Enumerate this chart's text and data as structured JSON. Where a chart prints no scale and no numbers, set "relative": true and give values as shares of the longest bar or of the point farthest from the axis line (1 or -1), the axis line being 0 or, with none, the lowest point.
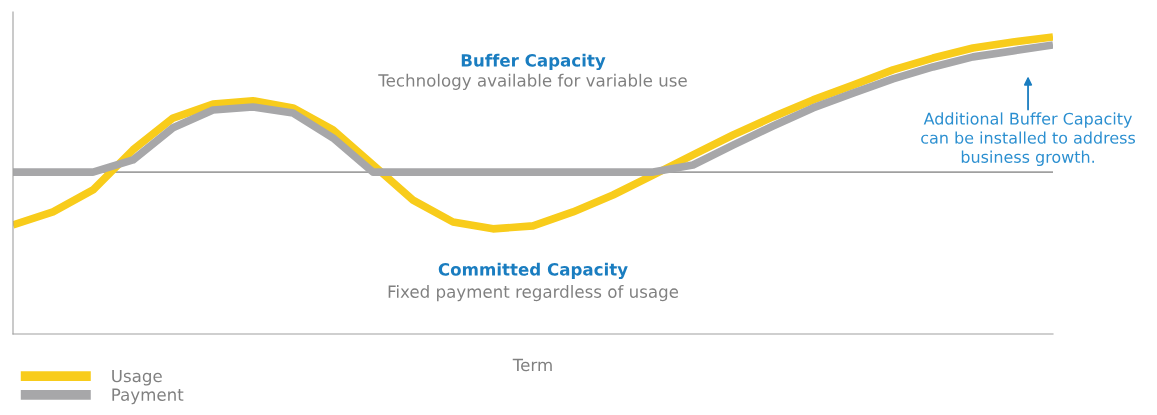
{
  "chart_data": {
    "type": "line",
    "relative": true,
    "xlabel": "Term",
    "categories": [
      null,
      null,
      null,
      null,
      null,
      null,
      null,
      null,
      null,
      null,
      null,
      null,
      null,
      null,
      null,
      null,
      null,
      null,
      null,
      null,
      null,
      null,
      null,
      null,
      null,
      null,
      null
    ],
    "series": [
      {
        "name": "Usage",
        "color": "#f8cc1b",
        "values": [
          0.367,
          0.411,
          0.485,
          0.62,
          0.727,
          0.774,
          0.785,
          0.761,
          0.687,
          0.569,
          0.451,
          0.377,
          0.354,
          0.364,
          0.411,
          0.468,
          0.535,
          0.603,
          0.67,
          0.731,
          0.788,
          0.838,
          0.889,
          0.929,
          0.963,
          0.983,
          1
        ]
      },
      {
        "name": "Payment",
        "color": "#a7a7a9",
        "values": [
          0.545,
          0.545,
          0.545,
          0.586,
          0.694,
          0.754,
          0.764,
          0.744,
          0.66,
          0.545,
          0.545,
          0.545,
          0.545,
          0.545,
          0.545,
          0.545,
          0.545,
          0.569,
          0.636,
          0.7,
          0.761,
          0.811,
          0.859,
          0.899,
          0.933,
          0.953,
          0.973
        ]
      }
    ],
    "ref_lines": [
      {
        "axis": "y",
        "value": 0.545,
        "color": "#a0a0a0"
      }
    ],
    "annotations": [
      "Buffer Capacity",
      "Technology available for variable use",
      "Committed Capacity",
      "Fixed payment regardless of usage",
      "Additional Buffer Capacity\ncan be installed to address\nbusiness growth."
    ],
    "legend": "bottom left",
    "grid": false,
    "marker": "none",
    "line_style": "solid"
  }
}
